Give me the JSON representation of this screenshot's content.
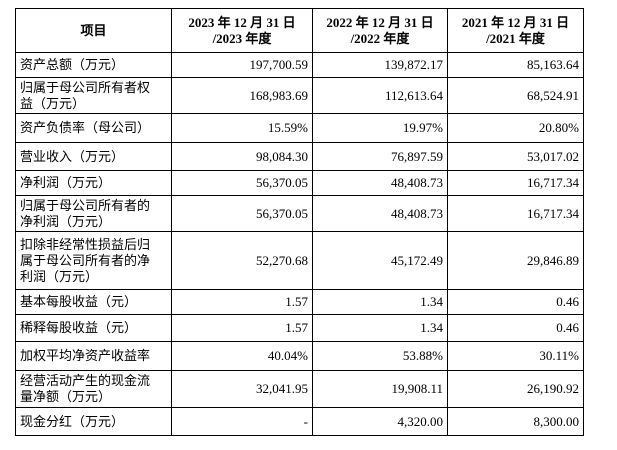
{
  "table": {
    "header": [
      [
        "项目"
      ],
      [
        "2023 年 12 月 31 日",
        "/2023 年度"
      ],
      [
        "2022 年 12 月 31 日",
        "/2022 年度"
      ],
      [
        "2021 年 12 月 31 日",
        "/2021 年度"
      ]
    ],
    "rows": [
      [
        [
          "资产总额（万元）"
        ],
        "197,700.59",
        "139,872.17",
        "85,163.64"
      ],
      [
        [
          "归属于母公司所有者权",
          "益（万元）"
        ],
        "168,983.69",
        "112,613.64",
        "68,524.91"
      ],
      [
        [
          "资产负债率（母公司）"
        ],
        "15.59%",
        "19.97%",
        "20.80%"
      ],
      [
        [
          "营业收入（万元）"
        ],
        "98,084.30",
        "76,897.59",
        "53,017.02"
      ],
      [
        [
          "净利润（万元）"
        ],
        "56,370.05",
        "48,408.73",
        "16,717.34"
      ],
      [
        [
          "归属于母公司所有者的",
          "净利润（万元）"
        ],
        "56,370.05",
        "48,408.73",
        "16,717.34"
      ],
      [
        [
          "扣除非经常性损益后归",
          "属于母公司所有者的净",
          "利润（万元）"
        ],
        "52,270.68",
        "45,172.49",
        "29,846.89"
      ],
      [
        [
          "基本每股收益（元）"
        ],
        "1.57",
        "1.34",
        "0.46"
      ],
      [
        [
          "稀释每股收益（元）"
        ],
        "1.57",
        "1.34",
        "0.46"
      ],
      [
        [
          "加权平均净资产收益率"
        ],
        "40.04%",
        "53.88%",
        "30.11%"
      ],
      [
        [
          "经营活动产生的现金流",
          "量净额（万元）"
        ],
        "32,041.95",
        "19,908.11",
        "26,190.92"
      ],
      [
        [
          "现金分红（万元）"
        ],
        "-",
        "4,320.00",
        "8,300.00"
      ]
    ]
  }
}
